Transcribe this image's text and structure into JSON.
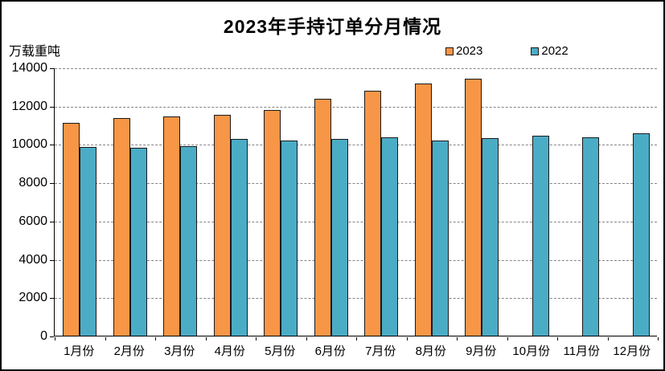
{
  "page": {
    "title": "2023年手持订单分月情况",
    "unit_label": "万载重吨"
  },
  "legend": {
    "items": [
      {
        "label": "2023",
        "color": "#F79646"
      },
      {
        "label": "2022",
        "color": "#4BACC6"
      }
    ]
  },
  "chart_data": {
    "type": "bar",
    "title": "2023年手持订单分月情况",
    "ylabel": "万载重吨",
    "categories": [
      "1月份",
      "2月份",
      "3月份",
      "4月份",
      "5月份",
      "6月份",
      "7月份",
      "8月份",
      "9月份",
      "10月份",
      "11月份",
      "12月份"
    ],
    "series": [
      {
        "name": "2023",
        "color": "#F79646",
        "values": [
          11109,
          11352,
          11452,
          11522,
          11799,
          12377,
          12790,
          13155,
          13393,
          null,
          null,
          null
        ]
      },
      {
        "name": "2022",
        "color": "#4BACC6",
        "values": [
          9850,
          9800,
          9900,
          10250,
          10200,
          10274,
          10370,
          10200,
          10300,
          10450,
          10350,
          10557
        ]
      }
    ],
    "ylim": [
      0,
      14000
    ],
    "yticks": [
      0,
      2000,
      4000,
      6000,
      8000,
      10000,
      12000,
      14000
    ],
    "grid": "horizontal-dashed",
    "gridline_color": "#848484",
    "bar_border_color": "#1a1a1a",
    "legend_position": "top-right"
  }
}
